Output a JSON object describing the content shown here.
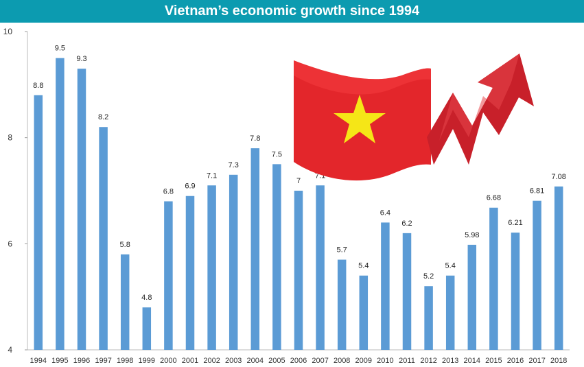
{
  "chart_data": {
    "type": "bar",
    "title": "Vietnam’s economic growth since 1994",
    "xlabel": "",
    "ylabel": "",
    "ylim": [
      4,
      10
    ],
    "yticks": [
      4,
      6,
      8,
      10
    ],
    "grid": false,
    "categories": [
      "1994",
      "1995",
      "1996",
      "1997",
      "1998",
      "1999",
      "2000",
      "2001",
      "2002",
      "2003",
      "2004",
      "2005",
      "2006",
      "2007",
      "2008",
      "2009",
      "2010",
      "2011",
      "2012",
      "2013",
      "2014",
      "2015",
      "2016",
      "2017",
      "2018"
    ],
    "values": [
      8.8,
      9.5,
      9.3,
      8.2,
      5.8,
      4.8,
      6.8,
      6.9,
      7.1,
      7.3,
      7.8,
      7.5,
      7,
      7.1,
      5.7,
      5.4,
      6.4,
      6.2,
      5.2,
      5.4,
      5.98,
      6.68,
      6.21,
      6.81,
      7.08
    ],
    "value_labels": [
      "8.8",
      "9.5",
      "9.3",
      "8.2",
      "5.8",
      "4.8",
      "6.8",
      "6.9",
      "7.1",
      "7.3",
      "7.8",
      "7.5",
      "7",
      "7.1",
      "5.7",
      "5.4",
      "6.4",
      "6.2",
      "5.2",
      "5.4",
      "5.98",
      "6.68",
      "6.21",
      "6.81",
      "7.08"
    ],
    "colors": {
      "bar": "#5b9bd5",
      "title_bg": "#0c9bb0",
      "flag_red": "#e3262b",
      "star": "#f5e617",
      "arrow": "#c8202a"
    }
  }
}
